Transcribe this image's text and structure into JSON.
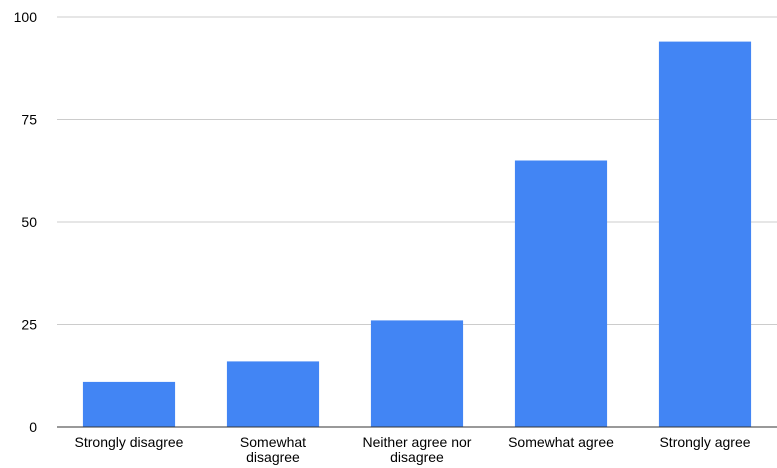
{
  "chart_data": {
    "type": "bar",
    "categories": [
      [
        "Strongly disagree"
      ],
      [
        "Somewhat",
        "disagree"
      ],
      [
        "Neither agree nor",
        "disagree"
      ],
      [
        "Somewhat agree"
      ],
      [
        "Strongly agree"
      ]
    ],
    "values": [
      11,
      16,
      26,
      65,
      94
    ],
    "yticks": [
      0,
      25,
      50,
      75,
      100
    ],
    "ylim": [
      0,
      100
    ],
    "title": "",
    "xlabel": "",
    "ylabel": "",
    "grid": true,
    "bar_color": "#4285f4"
  }
}
